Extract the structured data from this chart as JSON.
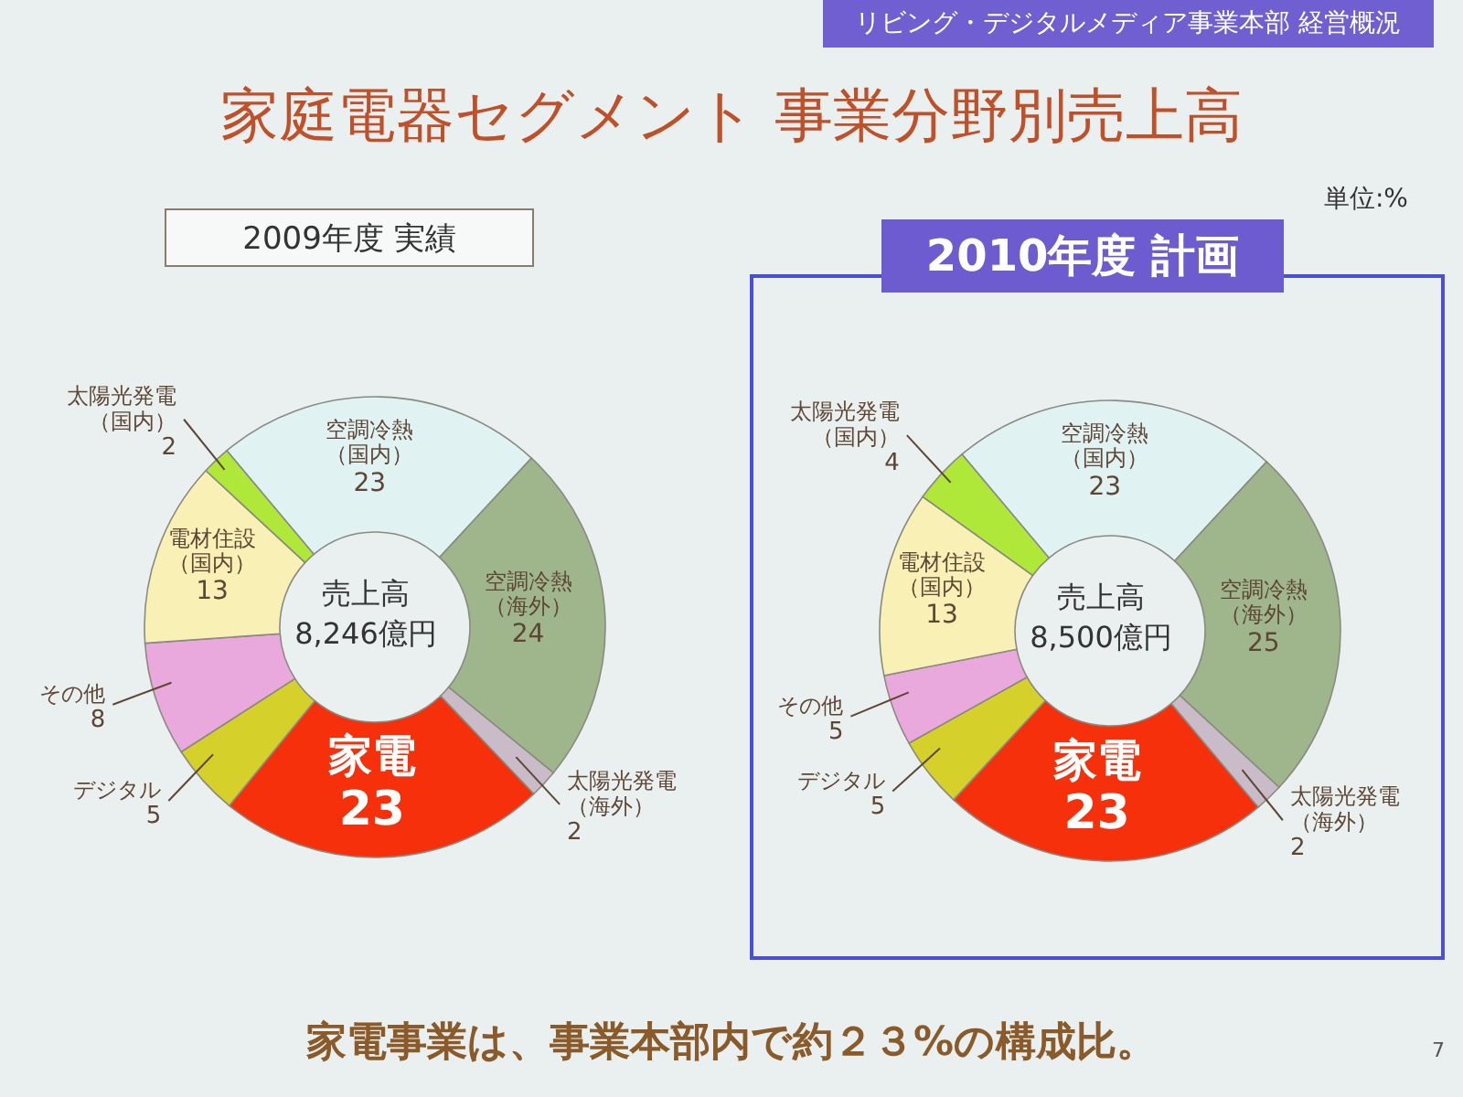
{
  "chart_data": [
    {
      "type": "donut",
      "title": "家庭電器セグメント 事業分野別売上高",
      "subtitle": "2009年度 実績",
      "categories": [
        "空調冷熱（国内）",
        "空調冷熱（海外）",
        "太陽光発電（海外）",
        "家電",
        "デジタル",
        "その他",
        "電材住設（国内）",
        "太陽光発電（国内）"
      ],
      "values": [
        23,
        24,
        2,
        23,
        5,
        8,
        13,
        2
      ],
      "colors": [
        "#e0f2f2",
        "#9fb58c",
        "#c9bcc8",
        "#f5300a",
        "#d6d12a",
        "#e9a9dc",
        "#f8f0b4",
        "#b0e83a"
      ],
      "data_labels": true,
      "annotations": [
        "リビング・デジタルメディア事業本部 経営概況",
        "売上高",
        "8,246億円",
        "家電事業は、事業本部内で約２３%の構成比。",
        "7"
      ]
    },
    {
      "type": "donut",
      "subtitle": "2010年度 計画",
      "categories": [
        "空調冷熱（国内）",
        "空調冷熱（海外）",
        "太陽光発電（海外）",
        "家電",
        "デジタル",
        "その他",
        "電材住設（国内）",
        "太陽光発電（国内）"
      ],
      "values": [
        23,
        25,
        2,
        23,
        5,
        5,
        13,
        4
      ],
      "colors": [
        "#e0f2f2",
        "#9fb58c",
        "#c9bcc8",
        "#f5300a",
        "#d6d12a",
        "#e9a9dc",
        "#f8f0b4",
        "#b0e83a"
      ],
      "data_labels": true,
      "annotations": [
        "単位:%",
        "売上高",
        "8,500億円"
      ]
    }
  ]
}
